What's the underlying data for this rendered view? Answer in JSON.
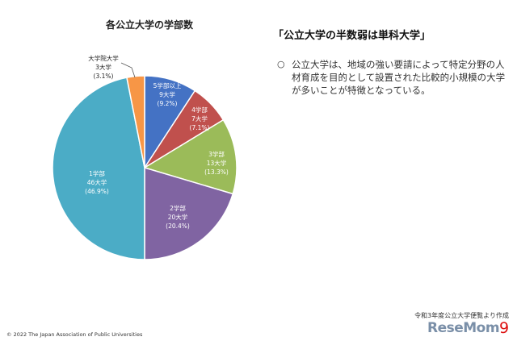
{
  "chart_title": "各公立大学の学部数",
  "heading": "「公立大学の半数弱は単科大学」",
  "bullet": "○",
  "body": "公立大学は、地域の強い要請によって特定分野の人材育成を目的として設置された比較的小規模の大学が多いことが特徴となっている。",
  "source": "令和3年度公立大学便覧より作成",
  "copyright": "© 2022 The Japan Association of Public Universities",
  "watermark": "ReseMom",
  "page_number": "9",
  "chart_data": {
    "type": "pie",
    "title": "各公立大学の学部数",
    "slices": [
      {
        "label": "5学部以上",
        "count": "9大学",
        "percent_label": "(9.2%)",
        "value": 9.2,
        "color": "#4472c4"
      },
      {
        "label": "4学部",
        "count": "7大学",
        "percent_label": "(7.1%)",
        "value": 7.1,
        "color": "#c0504d"
      },
      {
        "label": "3学部",
        "count": "13大学",
        "percent_label": "(13.3%)",
        "value": 13.3,
        "color": "#9bbb59"
      },
      {
        "label": "2学部",
        "count": "20大学",
        "percent_label": "(20.4%)",
        "value": 20.4,
        "color": "#8064a2"
      },
      {
        "label": "1学部",
        "count": "46大学",
        "percent_label": "(46.9%)",
        "value": 46.9,
        "color": "#4bacc6"
      },
      {
        "label": "大学院大学",
        "count": "3大学",
        "percent_label": "(3.1%)",
        "value": 3.1,
        "color": "#f79646"
      }
    ]
  }
}
